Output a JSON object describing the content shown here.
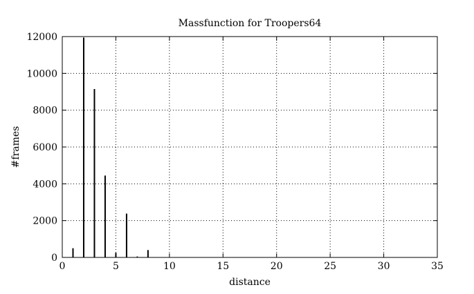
{
  "chart_data": {
    "type": "bar",
    "title": "Massfunction for Troopers64",
    "xlabel": "distance",
    "ylabel": "#frames",
    "xlim": [
      0,
      35
    ],
    "ylim": [
      0,
      12000
    ],
    "xticks": [
      0,
      5,
      10,
      15,
      20,
      25,
      30,
      35
    ],
    "yticks": [
      0,
      2000,
      4000,
      6000,
      8000,
      10000,
      12000
    ],
    "grid": true,
    "grid_style": "dotted",
    "bar_style": "impulse",
    "x": [
      1,
      2,
      3,
      4,
      5,
      6,
      7,
      8
    ],
    "values": [
      500,
      11950,
      9150,
      4450,
      250,
      2380,
      50,
      400
    ]
  }
}
